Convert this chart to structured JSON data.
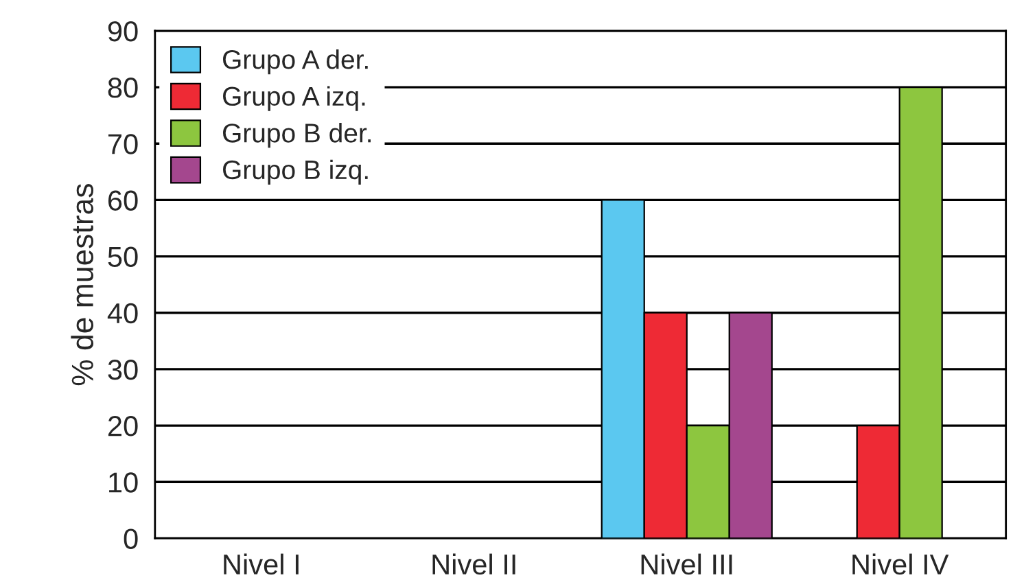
{
  "chart_data": {
    "type": "bar",
    "ylabel": "% de muestras",
    "categories": [
      "Nivel I",
      "Nivel II",
      "Nivel III",
      "Nivel IV"
    ],
    "series": [
      {
        "name": "Grupo A der.",
        "color": "#5bc8f0",
        "values": [
          null,
          null,
          60,
          null
        ]
      },
      {
        "name": "Grupo A izq.",
        "color": "#ee2a35",
        "values": [
          null,
          null,
          40,
          20
        ]
      },
      {
        "name": "Grupo B der.",
        "color": "#8dc63f",
        "values": [
          null,
          null,
          20,
          80
        ]
      },
      {
        "name": "Grupo B izq.",
        "color": "#a4478e",
        "values": [
          null,
          null,
          40,
          null
        ]
      }
    ],
    "ylim": [
      0,
      90
    ],
    "yticks": [
      0,
      10,
      20,
      30,
      40,
      50,
      60,
      70,
      80,
      90
    ],
    "grid": "y",
    "legend": "top left"
  }
}
